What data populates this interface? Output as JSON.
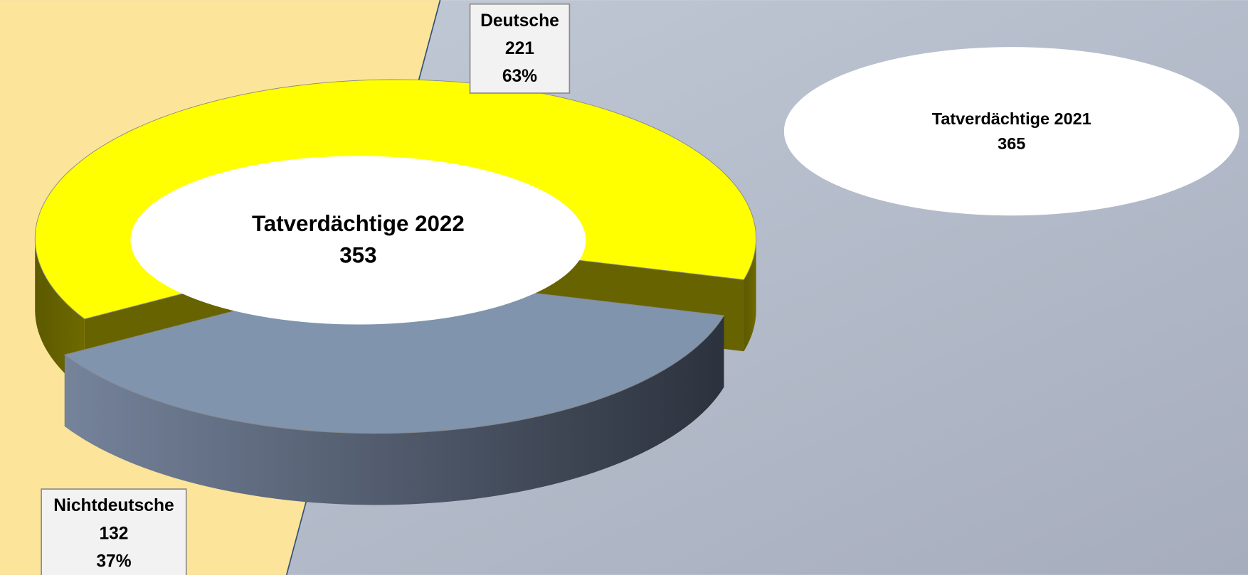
{
  "chart_data": {
    "type": "pie",
    "categories": [
      "Deutsche",
      "Nichtdeutsche"
    ],
    "values": [
      221,
      132
    ],
    "percent_labels": [
      "63%",
      "37%"
    ],
    "colors": [
      "#ffff00",
      "#8094ad"
    ],
    "annotations": [
      {
        "text": "Tatverdächtige 2022",
        "value": 353
      },
      {
        "text": "Tatverdächtige 2021",
        "value": 365
      }
    ]
  }
}
